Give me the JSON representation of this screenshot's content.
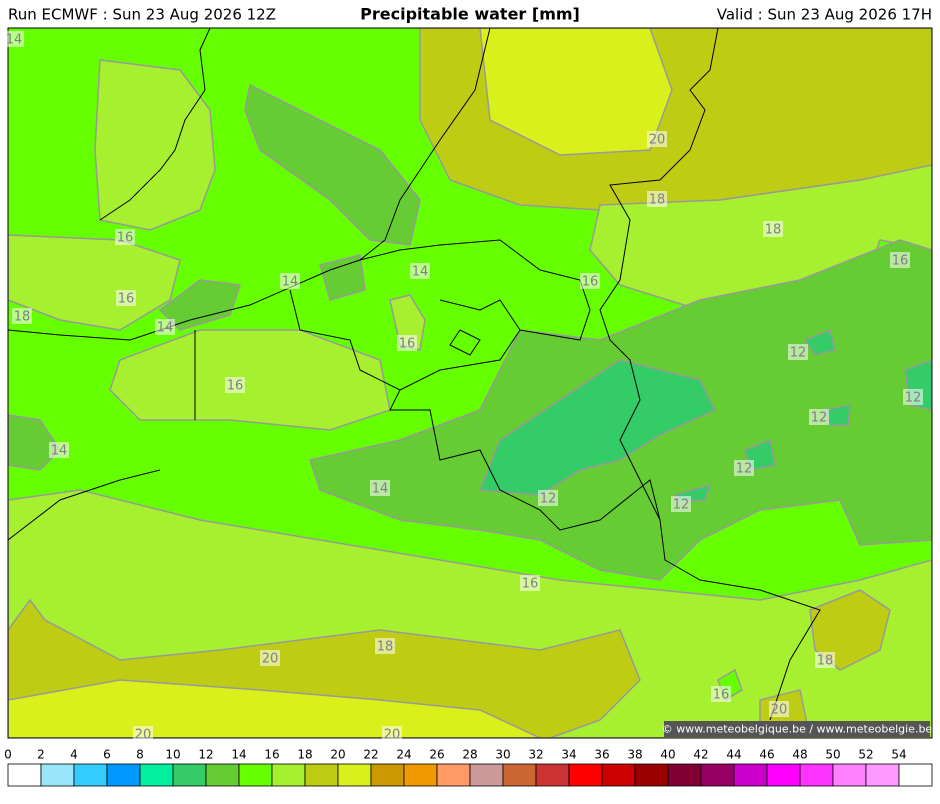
{
  "header": {
    "run": "Run ECMWF : Sun 23 Aug 2026 12Z",
    "title": "Precipitable water [mm]",
    "valid": "Valid : Sun 23 Aug 2026 17H"
  },
  "map": {
    "contour_labels": [
      "14",
      "20",
      "18",
      "18",
      "16",
      "16",
      "16",
      "16",
      "14",
      "14",
      "18",
      "14",
      "16",
      "16",
      "12",
      "12",
      "12",
      "12",
      "12",
      "12",
      "14",
      "14",
      "16",
      "18",
      "20",
      "18",
      "16",
      "20",
      "20",
      "20"
    ]
  },
  "copyright": "© www.meteobelgique.be / www.meteobelgie.be",
  "colorbar": {
    "ticks": [
      0,
      2,
      4,
      6,
      8,
      10,
      12,
      14,
      16,
      18,
      20,
      22,
      24,
      26,
      28,
      30,
      32,
      34,
      36,
      38,
      40,
      42,
      44,
      46,
      48,
      50,
      52,
      54
    ],
    "colors": [
      "#ffffff",
      "#99e6fa",
      "#33ccff",
      "#0099ff",
      "#00f0a0",
      "#33cc66",
      "#66cc33",
      "#66ff00",
      "#a6f030",
      "#bfcc14",
      "#d9f01a",
      "#cc9900",
      "#f09900",
      "#ff9966",
      "#cc9999",
      "#cc6633",
      "#cc3333",
      "#ff0000",
      "#cc0000",
      "#990000",
      "#800033",
      "#990066",
      "#cc00cc",
      "#ff00ff",
      "#ff33ff",
      "#ff80ff",
      "#ff99ff",
      "#ffffff"
    ]
  }
}
